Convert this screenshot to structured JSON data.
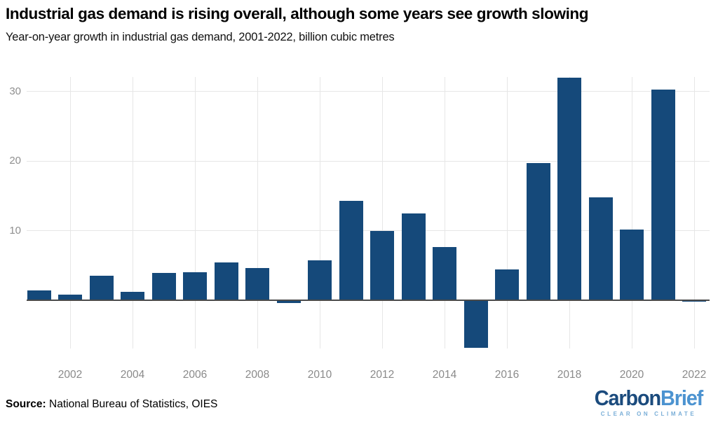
{
  "header": {
    "title": "Industrial gas demand is rising overall, although some years see growth slowing",
    "subtitle": "Year-on-year growth in industrial gas demand, 2001-2022, billion cubic metres"
  },
  "chart_data": {
    "type": "bar",
    "title": "Industrial gas demand is rising overall, although some years see growth slowing",
    "subtitle": "Year-on-year growth in industrial gas demand, 2001-2022, billion cubic metres",
    "xlabel": "",
    "ylabel": "billion cubic metres",
    "categories": [
      2001,
      2002,
      2003,
      2004,
      2005,
      2006,
      2007,
      2008,
      2009,
      2010,
      2011,
      2012,
      2013,
      2014,
      2015,
      2016,
      2017,
      2018,
      2019,
      2020,
      2021,
      2022
    ],
    "values": [
      1.4,
      0.8,
      3.6,
      1.2,
      4.0,
      4.1,
      5.5,
      4.7,
      -0.4,
      5.8,
      14.3,
      10.0,
      12.5,
      7.7,
      -6.8,
      4.5,
      19.7,
      32.0,
      14.8,
      10.2,
      30.3,
      -0.2
    ],
    "ylim": [
      -7.1,
      32.2
    ],
    "yticks": [
      10,
      20,
      30
    ],
    "xticks": [
      2002,
      2004,
      2006,
      2008,
      2010,
      2012,
      2014,
      2016,
      2018,
      2020,
      2022
    ],
    "grid": true,
    "legend": "none",
    "zero_baseline": true
  },
  "footer": {
    "source_label": "Source:",
    "source_text": " National Bureau of Statistics, OIES"
  },
  "logo": {
    "part1": "Carbon",
    "part2": "Brief",
    "tagline": "CLEAR ON CLIMATE"
  },
  "colors": {
    "bar": "#15497a",
    "baseline": "#4a4a4a",
    "gridline": "#e6e6e6",
    "tick_text": "#8f8f8f",
    "logo_carbon": "#1b4b7d",
    "logo_brief": "#4c93d0",
    "logo_tagline": "#79aed7"
  }
}
